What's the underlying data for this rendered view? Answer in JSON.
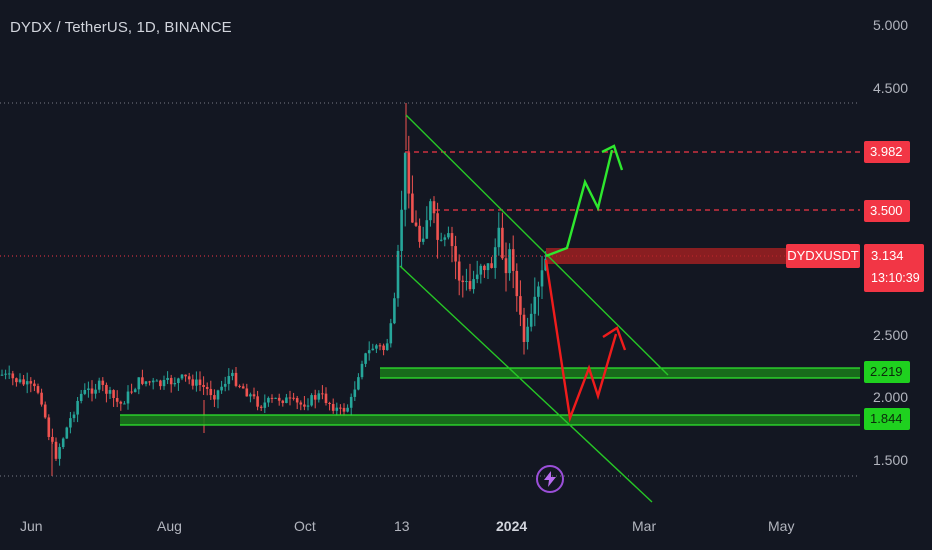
{
  "header": {
    "title": "DYDX / TetherUS, 1D, BINANCE"
  },
  "price_tags": {
    "target_high": "3.982",
    "target_mid": "3.500",
    "symbol": "DYDXUSDT",
    "current": "3.134",
    "countdown": "13:10:39",
    "support_1": "2.219",
    "support_2": "1.844"
  },
  "colors": {
    "background": "#131722",
    "up_candle": "#26a69a",
    "down_candle": "#ef5350",
    "channel": "#26c626",
    "bullish_path": "#2ee82e",
    "bearish_path": "#f01c1c",
    "tag_red": "#f23645",
    "tag_green": "#1fd11f"
  },
  "icons": {
    "flash": "lightning-bolt-icon"
  },
  "chart_data": {
    "type": "candlestick",
    "title": "DYDX / TetherUS, 1D, BINANCE",
    "y_axis": {
      "ticks": [
        "5.000",
        "4.500",
        "2.500",
        "2.000",
        "1.500"
      ],
      "range": [
        1.3,
        5.1
      ],
      "position": "right"
    },
    "x_axis": {
      "ticks": [
        "Jun",
        "Aug",
        "Oct",
        "13",
        "2024",
        "Mar",
        "May"
      ]
    },
    "horizontal_levels": [
      {
        "label": "3.982",
        "value": 3.982,
        "style": "dashed"
      },
      {
        "label": "3.500",
        "value": 3.5,
        "style": "dashed"
      },
      {
        "label": "3.134",
        "value": 3.134,
        "style": "band"
      },
      {
        "label": "2.219",
        "value": 2.219,
        "style": "band"
      },
      {
        "label": "1.844",
        "value": 1.844,
        "style": "band"
      }
    ],
    "grid": false
  }
}
